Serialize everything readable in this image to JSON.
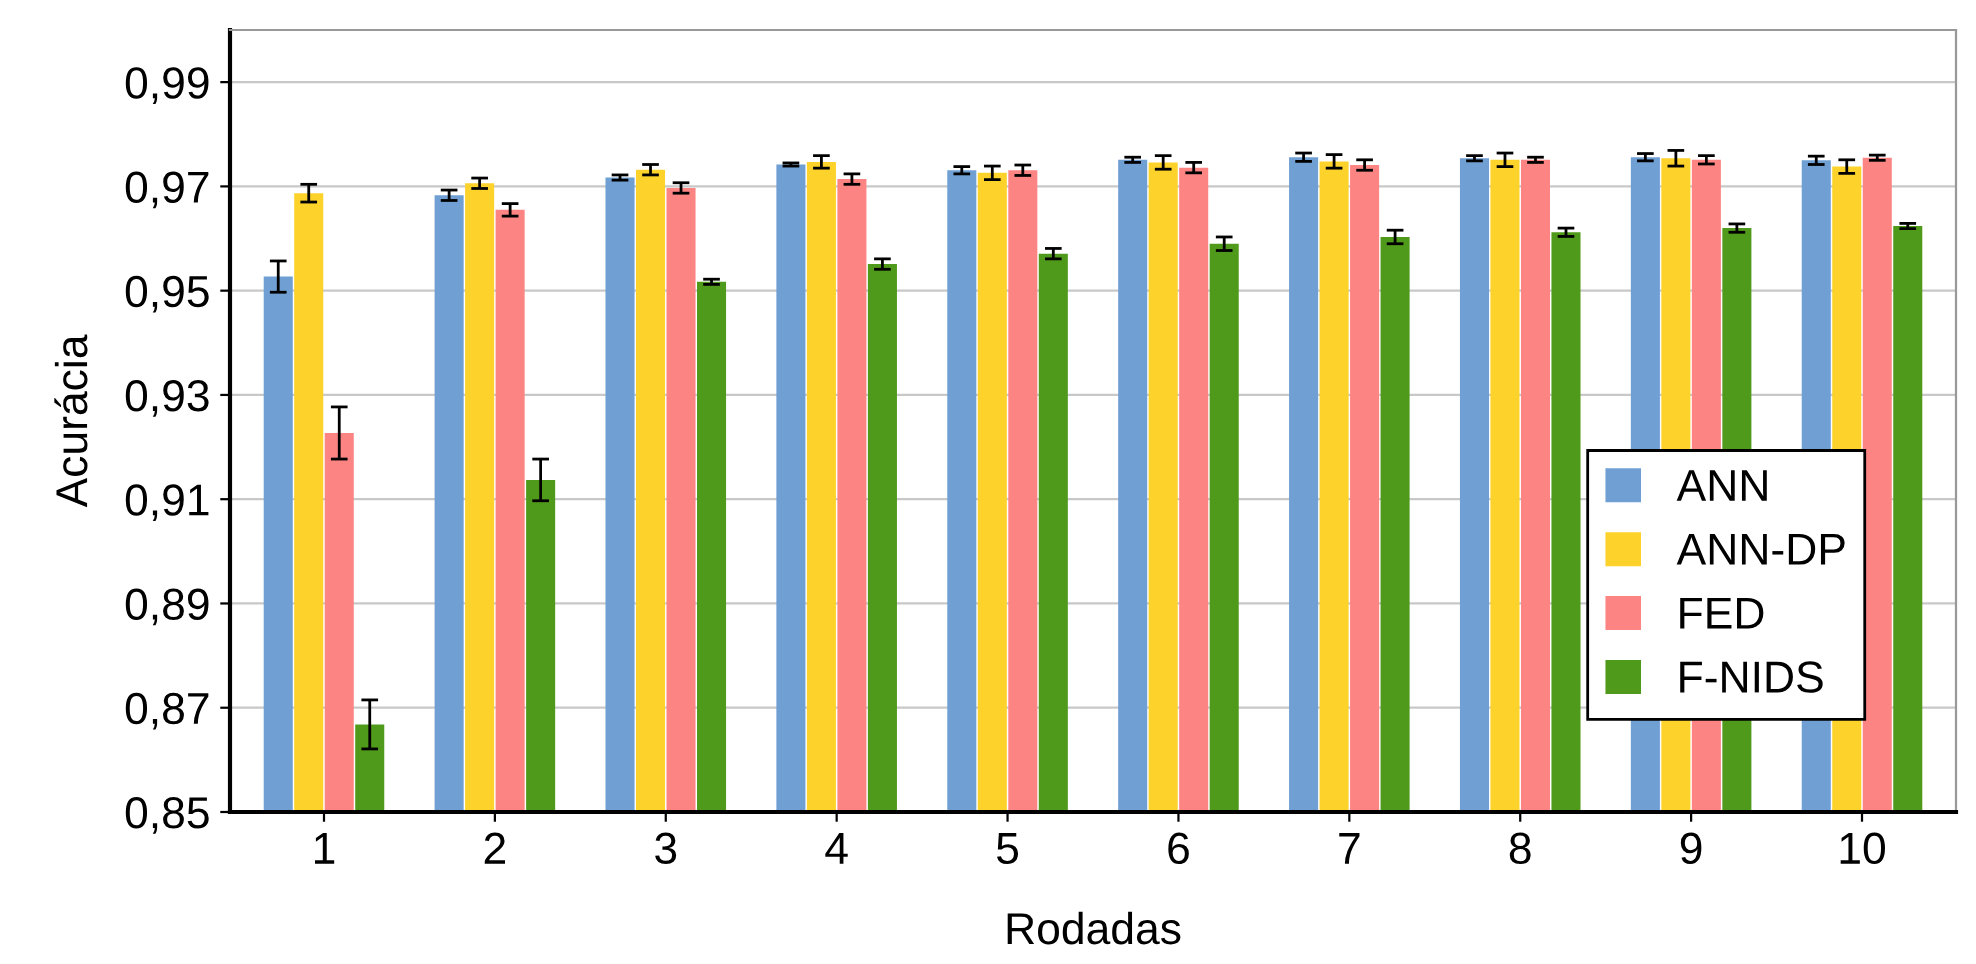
{
  "chart_data": {
    "type": "bar",
    "xlabel": "Rodadas",
    "ylabel": "Acurácia",
    "categories": [
      "1",
      "2",
      "3",
      "4",
      "5",
      "6",
      "7",
      "8",
      "9",
      "10"
    ],
    "series": [
      {
        "name": "ANN",
        "color": "#6f9fd3",
        "values": [
          0.9527,
          0.9683,
          0.9717,
          0.9742,
          0.9731,
          0.9751,
          0.9756,
          0.9754,
          0.9756,
          0.975
        ],
        "errors": [
          0.003,
          0.001,
          0.0005,
          0.0003,
          0.0007,
          0.0005,
          0.0008,
          0.0005,
          0.0007,
          0.0008
        ]
      },
      {
        "name": "ANN-DP",
        "color": "#fcd22b",
        "values": [
          0.9687,
          0.9706,
          0.9732,
          0.9747,
          0.9726,
          0.9746,
          0.9748,
          0.9751,
          0.9754,
          0.9738
        ],
        "errors": [
          0.0017,
          0.001,
          0.001,
          0.0012,
          0.0013,
          0.0013,
          0.0013,
          0.0013,
          0.0015,
          0.0013
        ]
      },
      {
        "name": "FED",
        "color": "#fc8584",
        "values": [
          0.9227,
          0.9655,
          0.9697,
          0.9714,
          0.9731,
          0.9736,
          0.9741,
          0.9751,
          0.9751,
          0.9755
        ],
        "errors": [
          0.005,
          0.0012,
          0.001,
          0.001,
          0.001,
          0.001,
          0.001,
          0.0005,
          0.0008,
          0.0005
        ]
      },
      {
        "name": "F-NIDS",
        "color": "#4f9a1a",
        "values": [
          0.8668,
          0.9137,
          0.9517,
          0.9551,
          0.9571,
          0.959,
          0.9603,
          0.9612,
          0.962,
          0.9624
        ],
        "errors": [
          0.0047,
          0.004,
          0.0005,
          0.001,
          0.001,
          0.0013,
          0.0013,
          0.0008,
          0.0008,
          0.0005
        ]
      }
    ],
    "ylim": [
      0.85,
      1.0
    ],
    "yticks": [
      {
        "value": 0.85,
        "label": "0,85"
      },
      {
        "value": 0.87,
        "label": "0,87"
      },
      {
        "value": 0.89,
        "label": "0,89"
      },
      {
        "value": 0.91,
        "label": "0,91"
      },
      {
        "value": 0.93,
        "label": "0,93"
      },
      {
        "value": 0.95,
        "label": "0,95"
      },
      {
        "value": 0.97,
        "label": "0,97"
      },
      {
        "value": 0.99,
        "label": "0,99"
      }
    ],
    "grid": "y",
    "legend": "bottom right"
  }
}
